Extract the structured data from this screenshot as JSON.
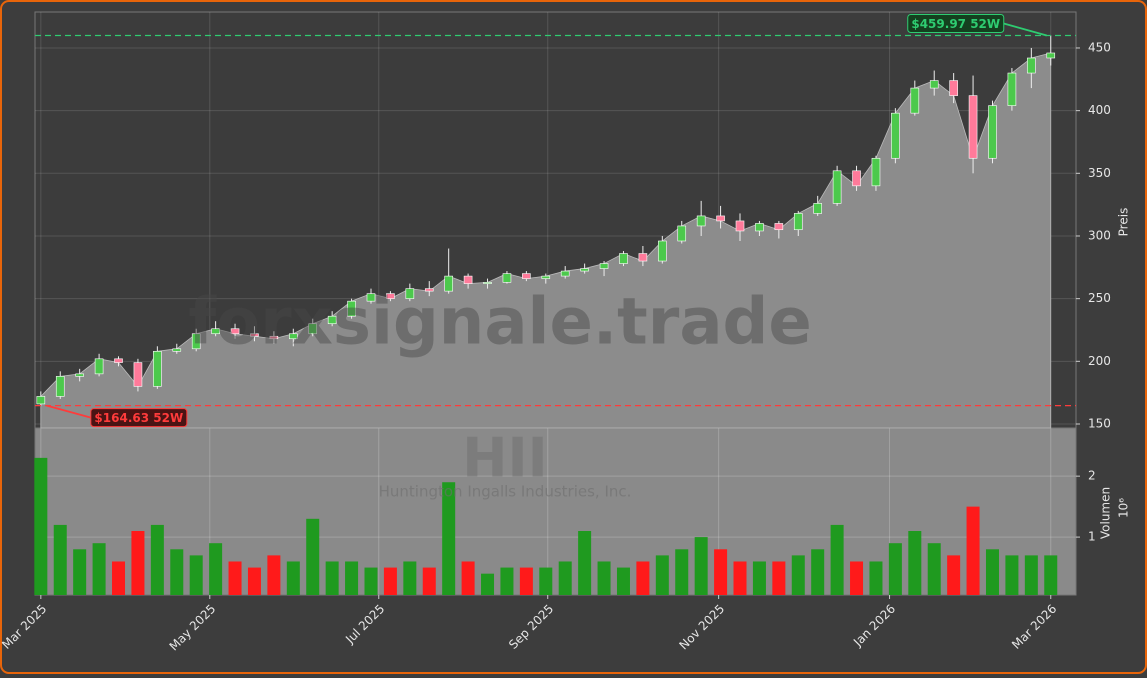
{
  "chart_data": {
    "type": "candlestick",
    "watermark": "forxsignale.trade",
    "title": "HII",
    "subtitle": "Huntington Ingalls Industries, Inc.",
    "ylabel": "Preis",
    "volume_label": "Volumen",
    "volume_offset_label": "10⁶",
    "categories": [
      null,
      null,
      null,
      null,
      null,
      null,
      null,
      null,
      null,
      null,
      null,
      null,
      null,
      null,
      null,
      null,
      null,
      null,
      null,
      null,
      null,
      null,
      null,
      null,
      null,
      null,
      null,
      null,
      null,
      null,
      null,
      null,
      null,
      null,
      null,
      null,
      null,
      null,
      null,
      null,
      null,
      null,
      null,
      null,
      null,
      null,
      null,
      null,
      null,
      null,
      null,
      null,
      null
    ],
    "open": [
      166,
      172,
      188,
      190,
      202,
      199,
      180,
      208,
      210,
      222,
      226,
      222,
      220,
      218,
      222,
      230,
      236,
      248,
      254,
      250,
      258,
      256,
      268,
      262,
      263,
      270,
      266,
      268,
      272,
      274,
      278,
      286,
      280,
      296,
      308,
      316,
      312,
      304,
      310,
      305,
      318,
      326,
      352,
      340,
      362,
      398,
      418,
      424,
      412,
      362,
      404,
      430,
      442
    ],
    "high": [
      176,
      192,
      194,
      206,
      204,
      202,
      212,
      214,
      226,
      232,
      230,
      228,
      224,
      226,
      234,
      240,
      250,
      258,
      256,
      262,
      264,
      290,
      270,
      266,
      272,
      272,
      270,
      276,
      278,
      280,
      288,
      292,
      300,
      312,
      328,
      324,
      318,
      312,
      312,
      320,
      332,
      356,
      356,
      364,
      402,
      424,
      432,
      430,
      428,
      408,
      434,
      450,
      459.97
    ],
    "low": [
      164.63,
      170,
      184,
      188,
      196,
      176,
      178,
      206,
      208,
      220,
      218,
      216,
      214,
      212,
      220,
      228,
      234,
      246,
      248,
      248,
      252,
      254,
      258,
      258,
      262,
      264,
      262,
      266,
      270,
      268,
      276,
      276,
      278,
      294,
      300,
      306,
      296,
      300,
      298,
      300,
      316,
      324,
      336,
      336,
      358,
      396,
      412,
      406,
      350,
      358,
      400,
      418,
      436
    ],
    "close": [
      172,
      188,
      190,
      202,
      199,
      180,
      208,
      210,
      222,
      226,
      222,
      220,
      218,
      222,
      230,
      236,
      248,
      254,
      250,
      258,
      256,
      268,
      262,
      263,
      270,
      266,
      268,
      272,
      274,
      278,
      286,
      280,
      296,
      308,
      316,
      312,
      304,
      310,
      305,
      318,
      326,
      352,
      340,
      362,
      398,
      418,
      424,
      412,
      362,
      404,
      430,
      442,
      446
    ],
    "volume": [
      2.3,
      1.2,
      0.8,
      0.9,
      0.6,
      1.1,
      1.2,
      0.8,
      0.7,
      0.9,
      0.6,
      0.5,
      0.7,
      0.6,
      1.3,
      0.6,
      0.6,
      0.5,
      0.5,
      0.6,
      0.5,
      1.9,
      0.6,
      0.4,
      0.5,
      0.5,
      0.5,
      0.6,
      1.1,
      0.6,
      0.5,
      0.6,
      0.7,
      0.8,
      1.0,
      0.8,
      0.6,
      0.6,
      0.6,
      0.7,
      0.8,
      1.2,
      0.6,
      0.6,
      0.9,
      1.1,
      0.9,
      0.7,
      1.5,
      0.8,
      0.7,
      0.7,
      0.7
    ],
    "up_color": "#4cc94c",
    "down_color": "#ff7a9a",
    "volume_up_color": "#1f9a1f",
    "volume_down_color": "#ff1a1a",
    "area_color": "#8c8c8c",
    "ylim": [
      146.8,
      478.7
    ],
    "yticks": [
      150,
      200,
      250,
      300,
      350,
      400,
      450
    ],
    "volume_ylim": [
      0.05,
      2.79
    ],
    "volume_yticks": [
      1,
      2
    ],
    "xlim": [
      -0.3,
      53.3
    ],
    "xticks": [
      {
        "value": 0,
        "label": "Mar 2025"
      },
      {
        "value": 8.7,
        "label": "May 2025"
      },
      {
        "value": 17.4,
        "label": "Jul 2025"
      },
      {
        "value": 26.1,
        "label": "Sep 2025"
      },
      {
        "value": 34.9,
        "label": "Nov 2025"
      },
      {
        "value": 43.7,
        "label": "Jan 2026"
      },
      {
        "value": 52,
        "label": "Mar 2026"
      }
    ],
    "grid": true,
    "hlines": [
      {
        "value": 459.97,
        "label": "$459.97 52W",
        "color": "#2ecc71",
        "index": 52
      },
      {
        "value": 164.63,
        "label": "$164.63 52W",
        "color": "#ff3b3b",
        "index": 0
      }
    ]
  }
}
